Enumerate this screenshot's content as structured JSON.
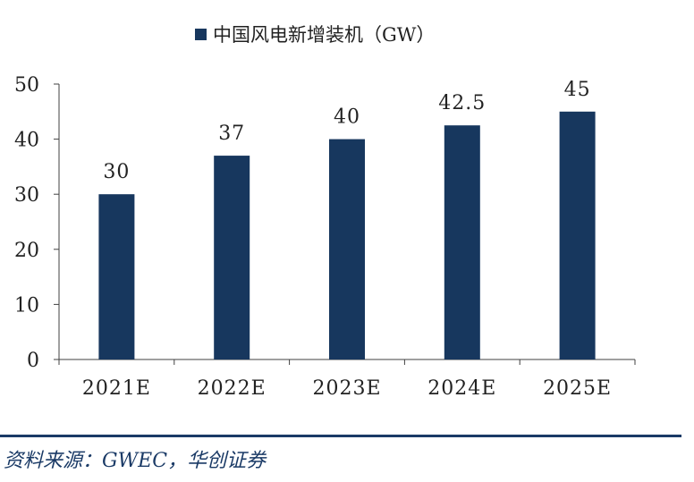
{
  "chart_data": {
    "type": "bar",
    "title": "",
    "legend": {
      "label": "中国风电新增装机（GW）",
      "position": "top"
    },
    "categories": [
      "2021E",
      "2022E",
      "2023E",
      "2024E",
      "2025E"
    ],
    "series": [
      {
        "name": "中国风电新增装机（GW）",
        "values": [
          30,
          37,
          40,
          42.5,
          45
        ],
        "color": "#17375e"
      }
    ],
    "data_labels": [
      "30",
      "37",
      "40",
      "42.5",
      "45"
    ],
    "y_ticks": [
      "0",
      "10",
      "20",
      "30",
      "40",
      "50"
    ],
    "ylim": [
      0,
      50
    ],
    "xlabel": "",
    "ylabel": "",
    "grid": false
  },
  "source": {
    "text": "资料来源：GWEC，华创证券"
  },
  "colors": {
    "bar": "#17375e",
    "axis": "#404040",
    "text": "#222222",
    "rule": "#1a3a66"
  }
}
